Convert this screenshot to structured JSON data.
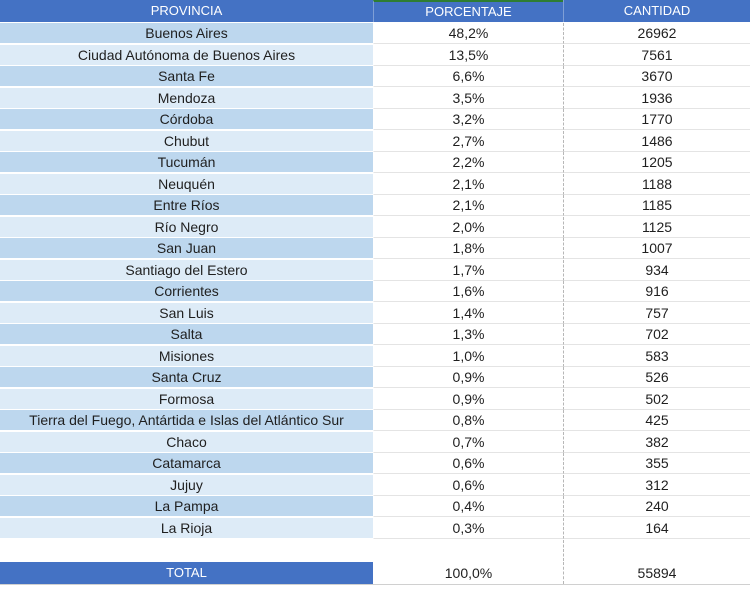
{
  "table": {
    "headers": {
      "provincia": "PROVINCIA",
      "porcentaje": "PORCENTAJE",
      "cantidad": "CANTIDAD"
    },
    "rows": [
      {
        "provincia": "Buenos Aires",
        "porcentaje": "48,2%",
        "cantidad": "26962"
      },
      {
        "provincia": "Ciudad Autónoma de Buenos Aires",
        "porcentaje": "13,5%",
        "cantidad": "7561"
      },
      {
        "provincia": "Santa Fe",
        "porcentaje": "6,6%",
        "cantidad": "3670"
      },
      {
        "provincia": "Mendoza",
        "porcentaje": "3,5%",
        "cantidad": "1936"
      },
      {
        "provincia": "Córdoba",
        "porcentaje": "3,2%",
        "cantidad": "1770"
      },
      {
        "provincia": "Chubut",
        "porcentaje": "2,7%",
        "cantidad": "1486"
      },
      {
        "provincia": "Tucumán",
        "porcentaje": "2,2%",
        "cantidad": "1205"
      },
      {
        "provincia": "Neuquén",
        "porcentaje": "2,1%",
        "cantidad": "1188"
      },
      {
        "provincia": "Entre Ríos",
        "porcentaje": "2,1%",
        "cantidad": "1185"
      },
      {
        "provincia": "Río Negro",
        "porcentaje": "2,0%",
        "cantidad": "1125"
      },
      {
        "provincia": "San Juan",
        "porcentaje": "1,8%",
        "cantidad": "1007"
      },
      {
        "provincia": "Santiago del Estero",
        "porcentaje": "1,7%",
        "cantidad": "934"
      },
      {
        "provincia": "Corrientes",
        "porcentaje": "1,6%",
        "cantidad": "916"
      },
      {
        "provincia": "San Luis",
        "porcentaje": "1,4%",
        "cantidad": "757"
      },
      {
        "provincia": "Salta",
        "porcentaje": "1,3%",
        "cantidad": "702"
      },
      {
        "provincia": "Misiones",
        "porcentaje": "1,0%",
        "cantidad": "583"
      },
      {
        "provincia": "Santa Cruz",
        "porcentaje": "0,9%",
        "cantidad": "526"
      },
      {
        "provincia": "Formosa",
        "porcentaje": "0,9%",
        "cantidad": "502"
      },
      {
        "provincia": "Tierra del Fuego, Antártida e Islas del Atlántico Sur",
        "porcentaje": "0,8%",
        "cantidad": "425"
      },
      {
        "provincia": "Chaco",
        "porcentaje": "0,7%",
        "cantidad": "382"
      },
      {
        "provincia": "Catamarca",
        "porcentaje": "0,6%",
        "cantidad": "355"
      },
      {
        "provincia": "Jujuy",
        "porcentaje": "0,6%",
        "cantidad": "312"
      },
      {
        "provincia": "La Pampa",
        "porcentaje": "0,4%",
        "cantidad": "240"
      },
      {
        "provincia": "La Rioja",
        "porcentaje": "0,3%",
        "cantidad": "164"
      }
    ],
    "total": {
      "label": "TOTAL",
      "porcentaje": "100,0%",
      "cantidad": "55894"
    }
  },
  "colors": {
    "header_bg": "#4472c4",
    "band_dark": "#bdd7ee",
    "band_light": "#ddebf7"
  }
}
